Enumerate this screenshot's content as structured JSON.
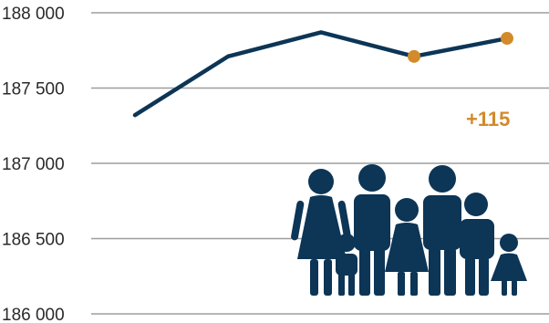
{
  "chart_data": {
    "type": "line",
    "title": "",
    "xlabel": "",
    "ylabel": "",
    "ylim": [
      186000,
      188000
    ],
    "yticks": [
      188000,
      187500,
      187000,
      186500,
      186000
    ],
    "ytick_labels": [
      "188 000",
      "187 500",
      "187 000",
      "186 500",
      "186 000"
    ],
    "grid": true,
    "x": [
      1,
      2,
      3,
      4,
      5
    ],
    "series": [
      {
        "values": [
          187320,
          187710,
          187870,
          187710,
          187830
        ]
      }
    ],
    "highlighted_points": [
      4,
      5
    ],
    "annotation": "+115",
    "colors": {
      "line": "#0c3556",
      "highlight": "#d28a2a",
      "grid": "#9e9e9e",
      "pictogram": "#0c3556"
    }
  },
  "pictogram": {
    "icon": "family-icon"
  }
}
